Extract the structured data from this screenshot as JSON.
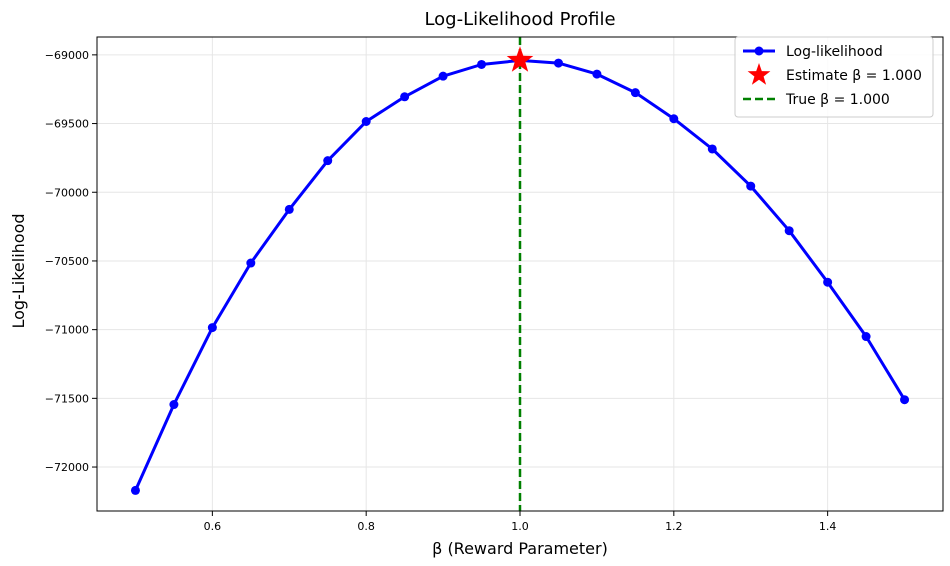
{
  "chart_data": {
    "type": "line",
    "title": "Log-Likelihood Profile",
    "xlabel": "β (Reward Parameter)",
    "ylabel": "Log-Likelihood",
    "xlim": [
      0.45,
      1.55
    ],
    "ylim": [
      -72320,
      -68870
    ],
    "x_ticks": [
      0.6,
      0.8,
      1.0,
      1.2,
      1.4
    ],
    "x_tick_labels": [
      "0.6",
      "0.8",
      "1.0",
      "1.2",
      "1.4"
    ],
    "y_ticks": [
      -69000,
      -69500,
      -70000,
      -70500,
      -71000,
      -71500,
      -72000
    ],
    "y_tick_labels": [
      "−69000",
      "−69500",
      "−70000",
      "−70500",
      "−71000",
      "−71500",
      "−72000"
    ],
    "grid": true,
    "legend_position": "top-right",
    "series": [
      {
        "name": "Log-likelihood",
        "color": "#0000ff",
        "marker": "circle",
        "x": [
          0.5,
          0.55,
          0.6,
          0.65,
          0.7,
          0.75,
          0.8,
          0.85,
          0.9,
          0.95,
          1.0,
          1.05,
          1.1,
          1.15,
          1.2,
          1.25,
          1.3,
          1.35,
          1.4,
          1.45,
          1.5
        ],
        "y": [
          -72170,
          -71545,
          -70985,
          -70515,
          -70125,
          -69770,
          -69485,
          -69305,
          -69155,
          -69070,
          -69040,
          -69060,
          -69140,
          -69275,
          -69465,
          -69685,
          -69955,
          -70280,
          -70655,
          -71050,
          -71510
        ]
      }
    ],
    "estimate": {
      "name": "Estimate β = 1.000",
      "x": 1.0,
      "y": -69040,
      "color": "#ff0000",
      "marker": "star"
    },
    "true_line": {
      "name": "True β = 1.000",
      "x": 1.0,
      "color": "#008000",
      "style": "dashed"
    }
  }
}
